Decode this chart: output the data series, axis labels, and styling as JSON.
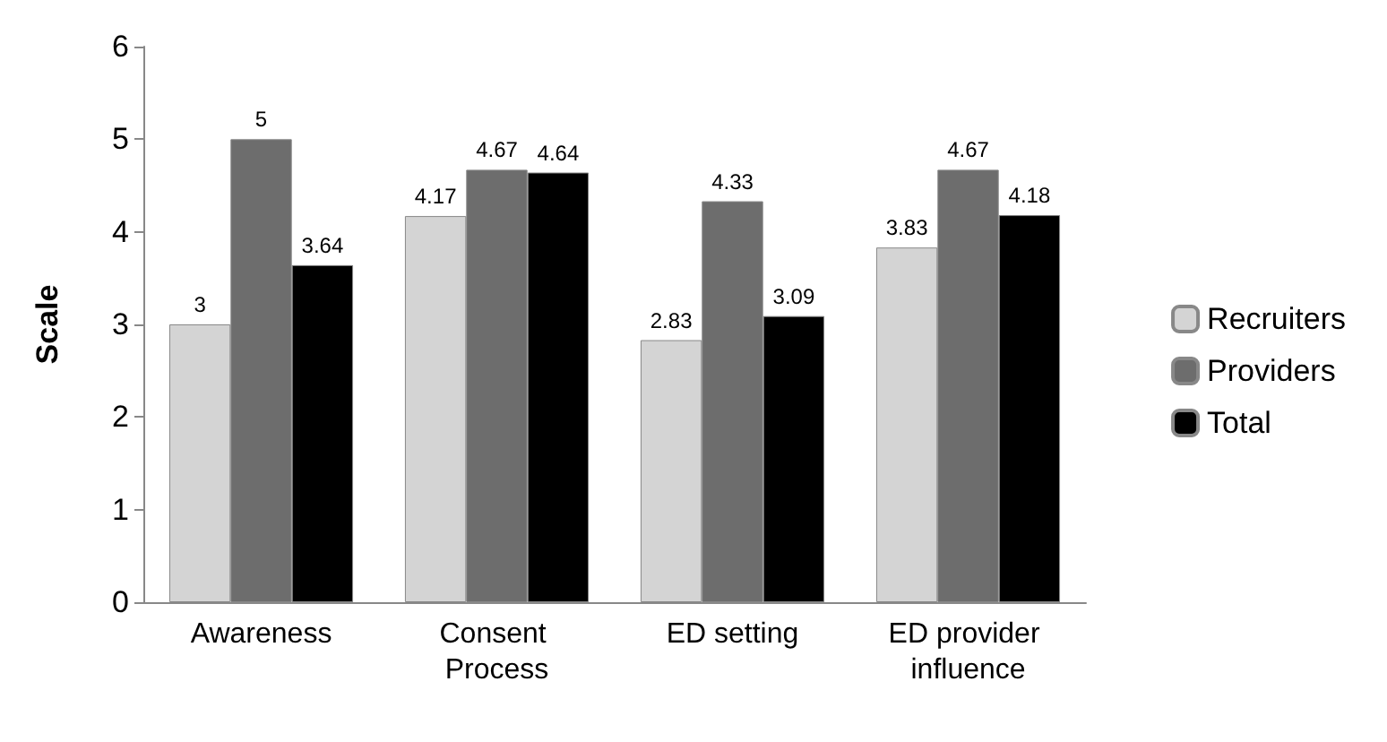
{
  "chart_data": {
    "type": "bar",
    "ylabel": "Scale",
    "categories": [
      "Awareness",
      "Consent Process",
      "ED setting",
      "ED provider influence"
    ],
    "series": [
      {
        "name": "Recruiters",
        "color": "#d4d4d4",
        "values": [
          3,
          4.17,
          2.83,
          3.83
        ]
      },
      {
        "name": "Providers",
        "color": "#6d6d6d",
        "values": [
          5,
          4.67,
          4.33,
          4.67
        ]
      },
      {
        "name": "Total",
        "color": "#000000",
        "values": [
          3.64,
          4.64,
          3.09,
          4.18
        ]
      }
    ],
    "ylim": [
      0,
      6
    ],
    "yticks": [
      0,
      1,
      2,
      3,
      4,
      5,
      6
    ],
    "grid": false,
    "legend": "right",
    "data_labels": true
  }
}
